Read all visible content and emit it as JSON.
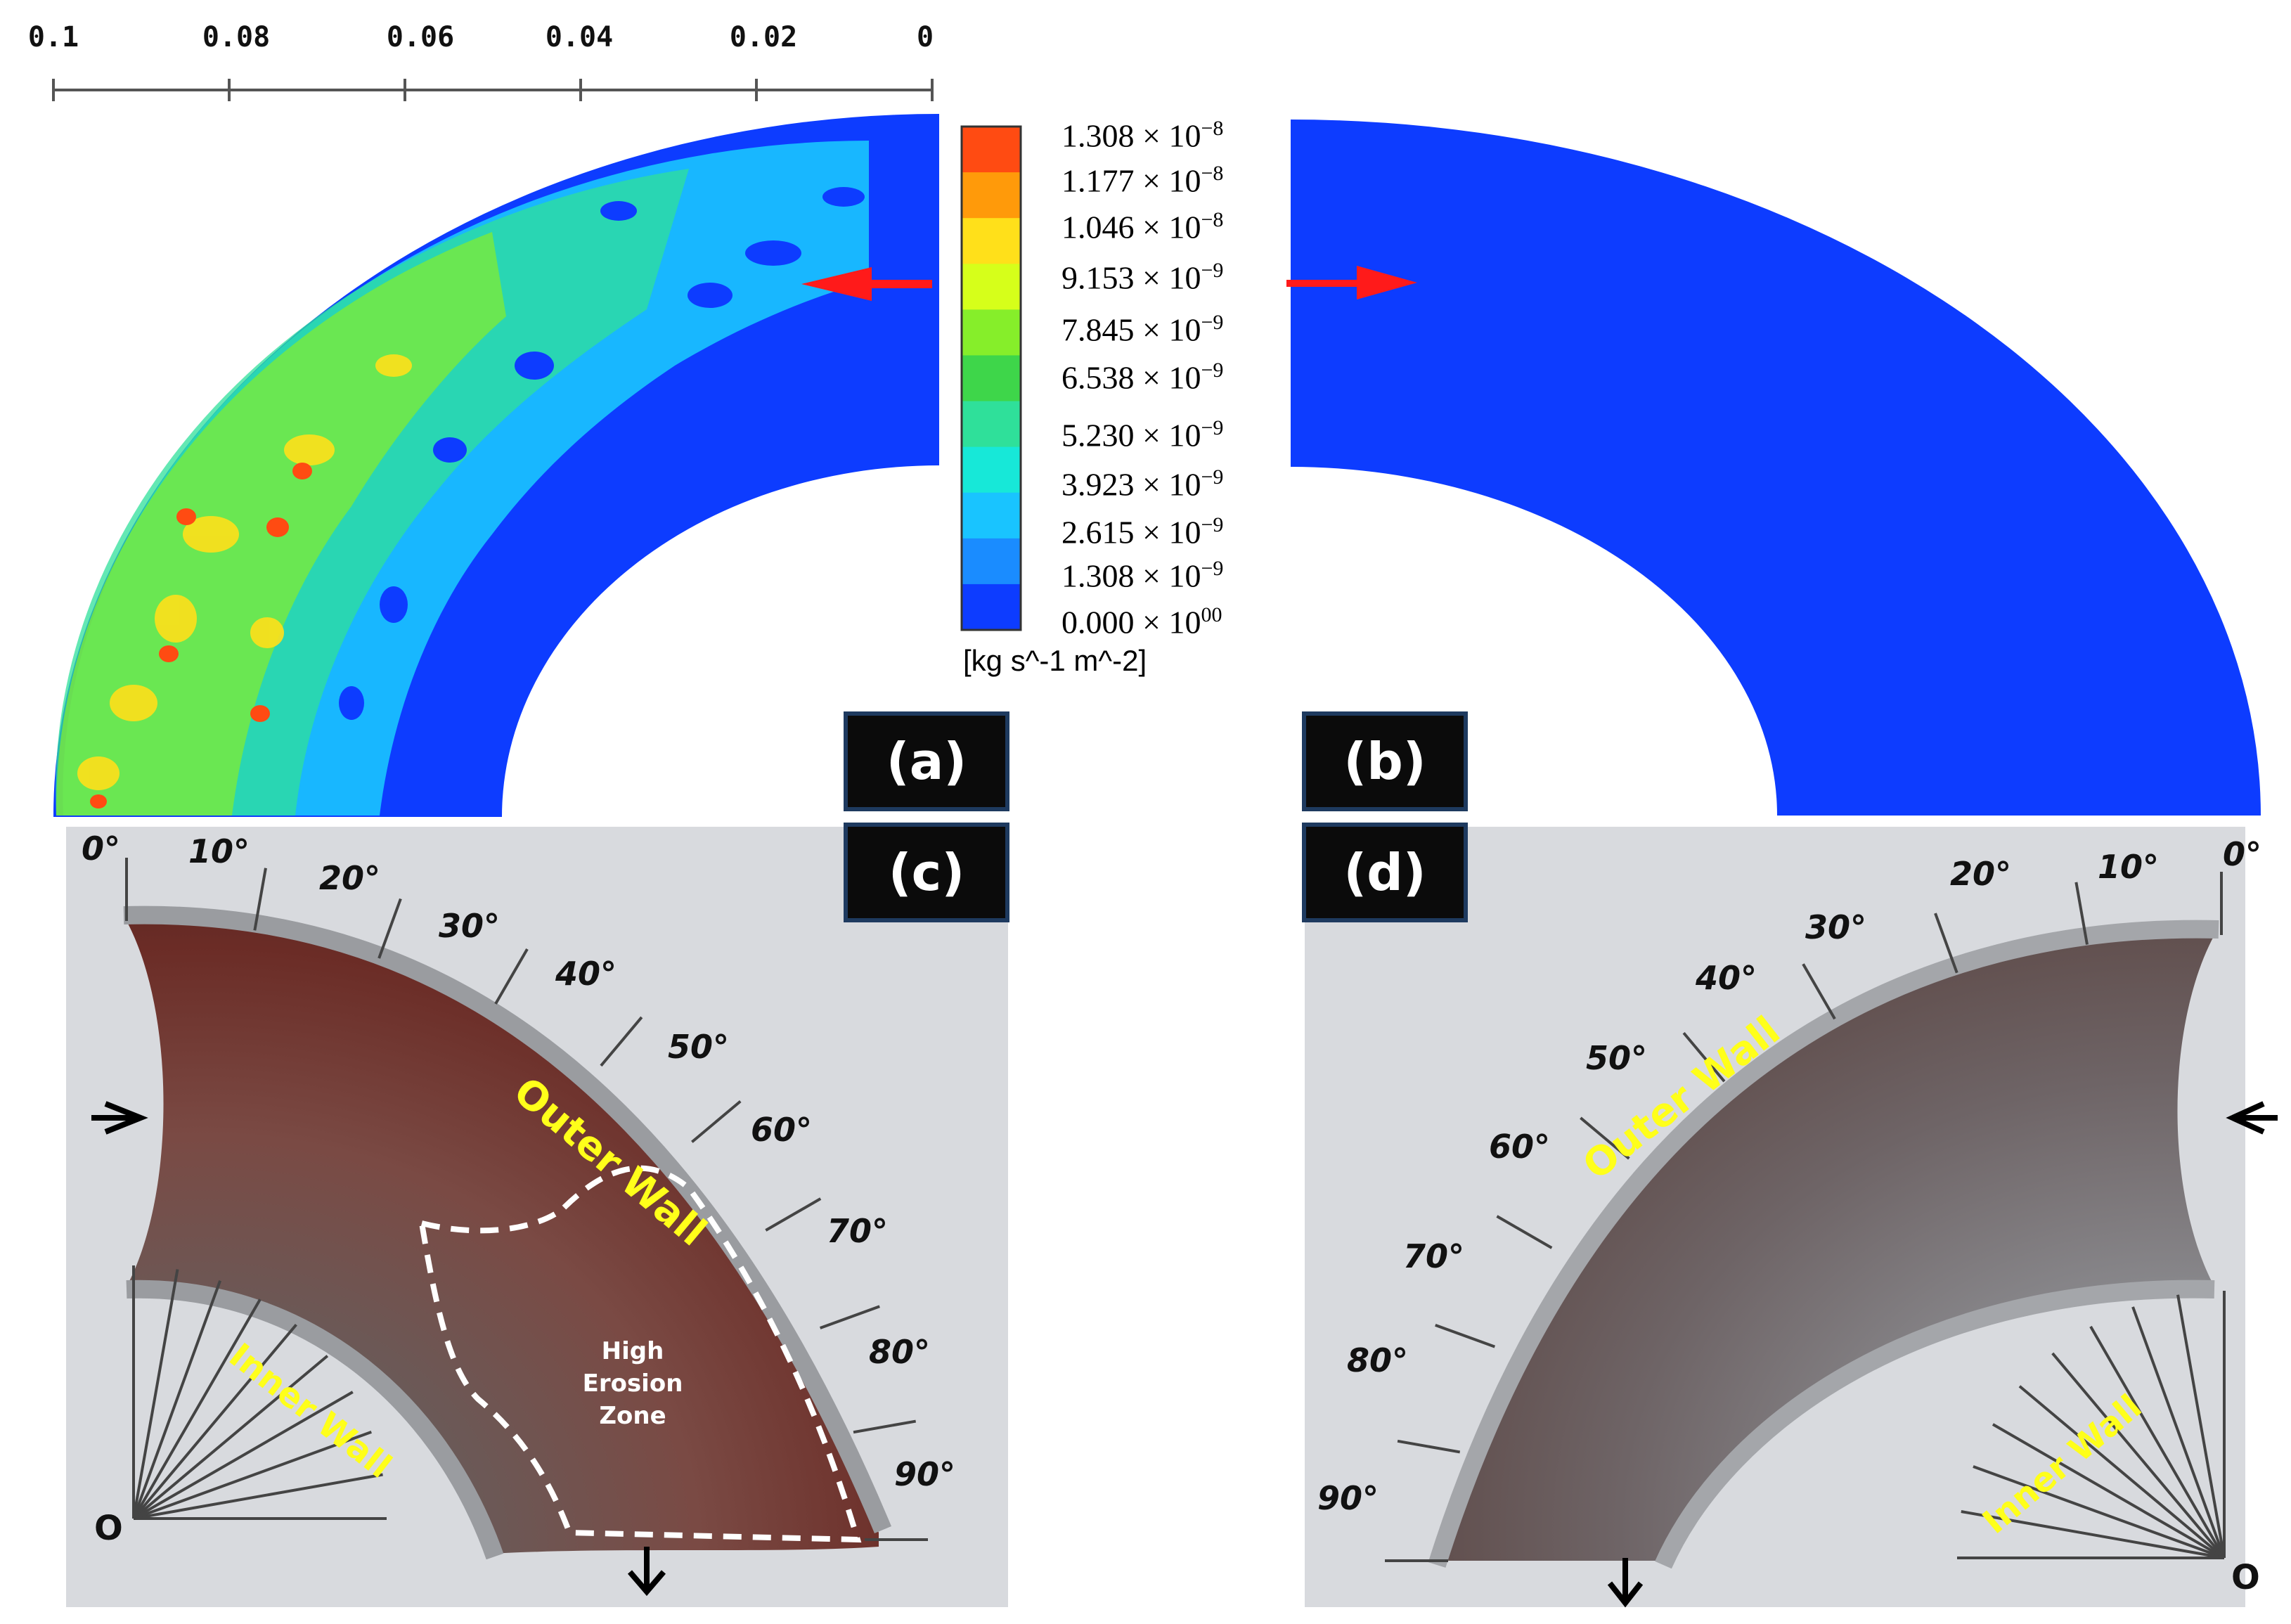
{
  "axis_ticks": [
    "0.1",
    "0.08",
    "0.06",
    "0.04",
    "0.02",
    "0"
  ],
  "colorbar": {
    "labels": [
      {
        "mant": "1.308",
        "exp": "−8"
      },
      {
        "mant": "1.177",
        "exp": "−8"
      },
      {
        "mant": "1.046",
        "exp": "−8"
      },
      {
        "mant": "9.153",
        "exp": "−9"
      },
      {
        "mant": "7.845",
        "exp": "−9"
      },
      {
        "mant": "6.538",
        "exp": "−9"
      },
      {
        "mant": "5.230",
        "exp": "−9"
      },
      {
        "mant": "3.923",
        "exp": "−9"
      },
      {
        "mant": "2.615",
        "exp": "−9"
      },
      {
        "mant": "1.308",
        "exp": "−9"
      },
      {
        "mant": "0.000",
        "exp": "00"
      }
    ],
    "times": "×",
    "base": "10",
    "unit": "[kg s^-1 m^-2]",
    "colors": [
      "#ff4b12",
      "#ff9a0a",
      "#ffe01a",
      "#d6ff1a",
      "#86ee2a",
      "#3ed64a",
      "#2fe09a",
      "#17e8d8",
      "#19c4ff",
      "#1a8cff",
      "#0d3cff"
    ]
  },
  "panels": {
    "a": "(a)",
    "b": "(b)",
    "c": "(c)",
    "d": "(d)"
  },
  "photo_c": {
    "angles": [
      "0°",
      "10°",
      "20°",
      "30°",
      "40°",
      "50°",
      "60°",
      "70°",
      "80°",
      "90°"
    ],
    "outer_wall": "Outer Wall",
    "inner_wall": "Inner Wall",
    "zone": [
      "High",
      "Erosion",
      "Zone"
    ],
    "origin": "O"
  },
  "photo_d": {
    "angles": [
      "0°",
      "10°",
      "20°",
      "30°",
      "40°",
      "50°",
      "60°",
      "70°",
      "80°",
      "90°"
    ],
    "outer_wall": "Outer Wall",
    "inner_wall": "Inner Wall",
    "origin": "O"
  }
}
